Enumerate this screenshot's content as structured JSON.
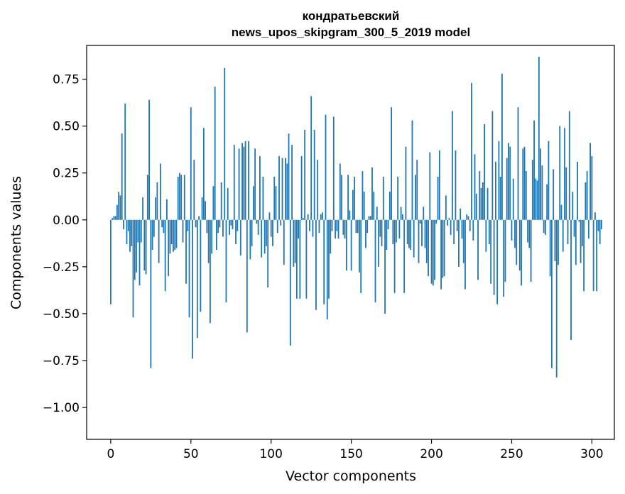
{
  "chart_data": {
    "type": "bar",
    "title": "кондратьевский",
    "subtitle": "news_upos_skipgram_300_5_2019 model",
    "xlabel": "Vector components",
    "ylabel": "Components values",
    "xlim": [
      -15,
      314
    ],
    "ylim": [
      -1.17,
      0.93
    ],
    "x_ticks": [
      0,
      50,
      100,
      150,
      200,
      250,
      300
    ],
    "x_tick_labels": [
      "0",
      "50",
      "100",
      "150",
      "200",
      "250",
      "300"
    ],
    "y_ticks": [
      0.75,
      0.5,
      0.25,
      0.0,
      -0.25,
      -0.5,
      -0.75,
      -1.0
    ],
    "y_tick_labels": [
      "0.75",
      "0.50",
      "0.25",
      "0.00",
      "−0.25",
      "−0.50",
      "−0.75",
      "−1.00"
    ],
    "bar_color": "#1f77b4",
    "grid": false,
    "values": [
      -0.45,
      0.01,
      0.02,
      0.02,
      0.08,
      0.15,
      0.13,
      0.46,
      -0.05,
      0.62,
      -0.13,
      -0.06,
      -0.17,
      -0.14,
      -0.52,
      -0.32,
      -0.28,
      -0.12,
      -0.35,
      -0.12,
      0.12,
      -0.27,
      -0.29,
      0.24,
      0.64,
      -0.79,
      -0.16,
      -0.09,
      0.12,
      0.2,
      -0.23,
      0.3,
      -0.04,
      -0.07,
      -0.38,
      0.11,
      -0.3,
      -0.18,
      -0.13,
      -0.17,
      -0.16,
      -0.15,
      0.23,
      0.25,
      0.24,
      -0.12,
      0.24,
      -0.34,
      -0.06,
      -0.52,
      0.6,
      -0.74,
      0.32,
      -0.04,
      -0.63,
      0.02,
      -0.49,
      0.12,
      0.49,
      0.1,
      -0.07,
      -0.23,
      -0.55,
      -0.18,
      0.18,
      0.71,
      -0.16,
      -0.07,
      -0.04,
      0.2,
      -0.09,
      0.81,
      -0.44,
      0.17,
      -0.08,
      -0.03,
      -0.05,
      0.4,
      -0.13,
      -0.06,
      0.38,
      -0.19,
      0.41,
      0.39,
      0.42,
      -0.6,
      0.42,
      -0.21,
      -0.14,
      0.18,
      0.38,
      -0.02,
      -0.08,
      0.34,
      -0.2,
      0.23,
      -0.18,
      -0.14,
      -0.36,
      0.04,
      -0.09,
      -0.14,
      0.23,
      0.18,
      -0.07,
      0.34,
      -0.03,
      0.33,
      -0.24,
      0.33,
      0.3,
      0.46,
      -0.67,
      0.4,
      -0.25,
      -0.23,
      -0.42,
      -0.1,
      -0.42,
      0.34,
      0.01,
      0.48,
      -0.42,
      0.03,
      -0.06,
      0.66,
      -0.09,
      0.48,
      -0.48,
      0.32,
      -0.07,
      0.03,
      0.04,
      -0.45,
      0.56,
      -0.53,
      -0.42,
      -0.18,
      -0.06,
      0.55,
      -0.1,
      -0.06,
      -0.1,
      0.3,
      0.24,
      -0.08,
      -0.1,
      -0.27,
      0.24,
      0.05,
      -0.27,
      0.16,
      0.23,
      -0.07,
      -0.07,
      -0.28,
      -0.39,
      0.26,
      0.15,
      -0.15,
      -0.07,
      0.02,
      0.02,
      0.28,
      0.15,
      -0.44,
      0.07,
      -0.25,
      -0.09,
      -0.14,
      0.23,
      -0.5,
      -0.16,
      -0.05,
      0.15,
      0.6,
      -0.13,
      -0.39,
      -0.12,
      0.23,
      -0.1,
      0.07,
      0.03,
      -0.39,
      0.39,
      -0.13,
      -0.15,
      -0.16,
      0.53,
      -0.2,
      0.24,
      0.32,
      -0.23,
      -0.02,
      -0.14,
      0.07,
      -0.15,
      -0.23,
      -0.3,
      0.36,
      -0.34,
      -0.35,
      -0.32,
      -0.02,
      0.23,
      0.37,
      -0.37,
      -0.31,
      -0.3,
      0.13,
      -0.03,
      0.01,
      -0.08,
      0.58,
      -0.13,
      0.37,
      -0.06,
      -0.25,
      0.06,
      -0.1,
      -0.23,
      -0.37,
      0.03,
      0.02,
      -0.06,
      0.73,
      -0.11,
      0.35,
      0.14,
      -0.32,
      0.26,
      0.17,
      0.2,
      0.51,
      -0.17,
      0.17,
      -0.13,
      -0.34,
      0.58,
      -0.4,
      0.31,
      -0.45,
      0.42,
      0.23,
      0.78,
      -0.41,
      -0.33,
      0.33,
      0.41,
      0.39,
      -0.11,
      0.22,
      -0.15,
      -0.24,
      0.6,
      -0.27,
      -0.35,
      0.38,
      0.39,
      0.26,
      -0.12,
      -0.15,
      -0.33,
      0.32,
      0.53,
      0.22,
      0.21,
      0.87,
      0.38,
      0.29,
      -0.07,
      -0.08,
      0.19,
      0.42,
      -0.3,
      -0.79,
      0.27,
      -0.22,
      -0.84,
      -0.24,
      0.5,
      0.08,
      -0.17,
      0.49,
      0.28,
      -0.13,
      0.58,
      -0.64,
      0.15,
      -0.09,
      -0.24,
      0.31,
      -0.01,
      -0.23,
      -0.14,
      -0.38,
      0.2,
      0.26,
      -0.1,
      0.41,
      0.34,
      -0.38,
      0.04,
      -0.38,
      -0.06,
      -0.13,
      -0.05
    ]
  }
}
